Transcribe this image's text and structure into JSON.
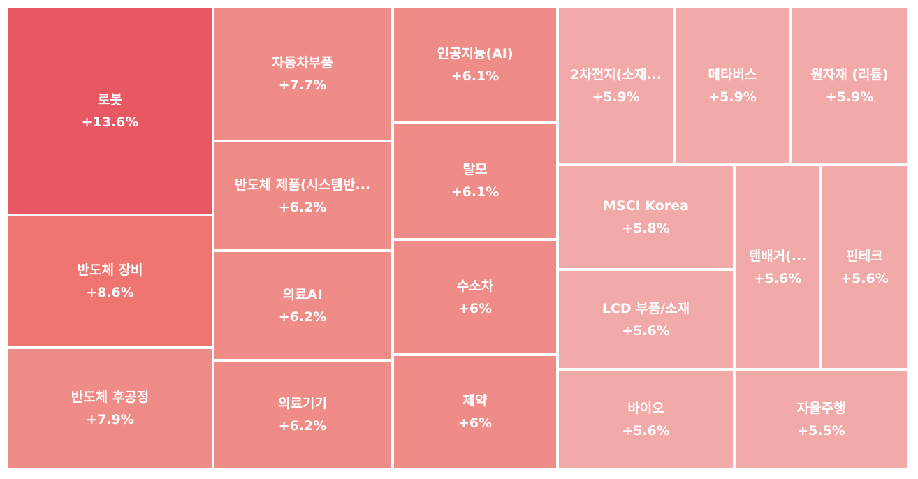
{
  "chart_data": {
    "type": "treemap",
    "title": "",
    "unit": "%",
    "items": [
      {
        "name": "로봇",
        "value": 13.6,
        "label": "+13.6%",
        "color": "#e85862"
      },
      {
        "name": "반도체 장비",
        "value": 8.6,
        "label": "+8.6%",
        "color": "#ee7570"
      },
      {
        "name": "반도체 후공정",
        "value": 7.9,
        "label": "+7.9%",
        "color": "#f08c88"
      },
      {
        "name": "자동차부품",
        "value": 7.7,
        "label": "+7.7%",
        "color": "#f08c88"
      },
      {
        "name": "반도체 제품(시스템반...",
        "value": 6.2,
        "label": "+6.2%",
        "color": "#f08c88"
      },
      {
        "name": "의료AI",
        "value": 6.2,
        "label": "+6.2%",
        "color": "#f08c88"
      },
      {
        "name": "의료기기",
        "value": 6.2,
        "label": "+6.2%",
        "color": "#f08c88"
      },
      {
        "name": "인공지능(AI)",
        "value": 6.1,
        "label": "+6.1%",
        "color": "#f08c88"
      },
      {
        "name": "탈모",
        "value": 6.1,
        "label": "+6.1%",
        "color": "#f08c88"
      },
      {
        "name": "수소차",
        "value": 6,
        "label": "+6%",
        "color": "#f08c88"
      },
      {
        "name": "제약",
        "value": 6,
        "label": "+6%",
        "color": "#f08c88"
      },
      {
        "name": "2차전지(소재...",
        "value": 5.9,
        "label": "+5.9%",
        "color": "#f2aaa8"
      },
      {
        "name": "메타버스",
        "value": 5.9,
        "label": "+5.9%",
        "color": "#f2aaa8"
      },
      {
        "name": "원자재 (리튬)",
        "value": 5.9,
        "label": "+5.9%",
        "color": "#f2aaa8"
      },
      {
        "name": "MSCI Korea",
        "value": 5.8,
        "label": "+5.8%",
        "color": "#f2aaa8"
      },
      {
        "name": "LCD 부품/소재",
        "value": 5.6,
        "label": "+5.6%",
        "color": "#f2aaa8"
      },
      {
        "name": "텐배거(...",
        "value": 5.6,
        "label": "+5.6%",
        "color": "#f2aaa8"
      },
      {
        "name": "핀테크",
        "value": 5.6,
        "label": "+5.6%",
        "color": "#f2aaa8"
      },
      {
        "name": "바이오",
        "value": 5.6,
        "label": "+5.6%",
        "color": "#f2aaa8"
      },
      {
        "name": "자율주행",
        "value": 5.5,
        "label": "+5.5%",
        "color": "#f2aaa8"
      }
    ]
  }
}
